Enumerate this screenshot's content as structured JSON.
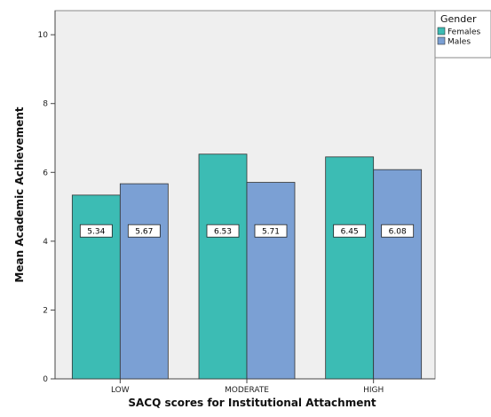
{
  "chart_data": {
    "type": "bar",
    "categories": [
      "LOW",
      "MODERATE",
      "HIGH"
    ],
    "series": [
      {
        "name": "Females",
        "values": [
          5.34,
          6.53,
          6.45
        ]
      },
      {
        "name": "Males",
        "values": [
          5.67,
          5.71,
          6.08
        ]
      }
    ],
    "data_labels": [
      [
        "5.34",
        "6.53",
        "6.45"
      ],
      [
        "5.67",
        "5.71",
        "6.08"
      ]
    ],
    "xlabel": "SACQ scores for Institutional Attachment",
    "ylabel": "Mean Academic Achievement",
    "ylim": [
      0,
      10.7
    ],
    "yticks": [
      0,
      2,
      4,
      6,
      8,
      10
    ],
    "legend_title": "Gender",
    "legend_position": "top-right, outside plot",
    "grid": false,
    "colors": {
      "Females": "#3cbcb4",
      "Males": "#7ba0d4",
      "plot_background": "#efefef"
    }
  }
}
